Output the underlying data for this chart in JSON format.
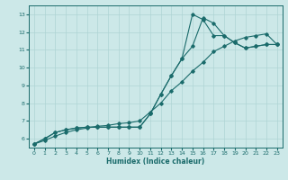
{
  "xlabel": "Humidex (Indice chaleur)",
  "bg_color": "#cce8e8",
  "line_color": "#1a6b6b",
  "grid_color": "#afd4d4",
  "xlim": [
    -0.5,
    23.5
  ],
  "ylim": [
    5.5,
    13.5
  ],
  "xticks": [
    0,
    1,
    2,
    3,
    4,
    5,
    6,
    7,
    8,
    9,
    10,
    11,
    12,
    13,
    14,
    15,
    16,
    17,
    18,
    19,
    20,
    21,
    22,
    23
  ],
  "yticks": [
    6,
    7,
    8,
    9,
    10,
    11,
    12,
    13
  ],
  "curve_spike1": {
    "x": [
      0,
      1,
      2,
      3,
      4,
      5,
      6,
      7,
      8,
      9,
      10,
      11,
      12,
      13,
      14,
      15,
      16,
      17,
      18,
      19,
      20,
      21,
      22,
      23
    ],
    "y": [
      5.7,
      6.0,
      6.35,
      6.5,
      6.6,
      6.65,
      6.65,
      6.65,
      6.65,
      6.65,
      6.65,
      7.4,
      8.5,
      9.55,
      10.5,
      13.0,
      12.7,
      11.8,
      11.8,
      11.4,
      11.1,
      11.2,
      11.3,
      11.3
    ]
  },
  "curve_spike2": {
    "x": [
      0,
      1,
      2,
      3,
      4,
      5,
      6,
      7,
      8,
      9,
      10,
      11,
      12,
      13,
      14,
      15,
      16,
      17,
      18,
      19,
      20,
      21,
      22,
      23
    ],
    "y": [
      5.7,
      6.0,
      6.35,
      6.5,
      6.6,
      6.65,
      6.65,
      6.65,
      6.65,
      6.65,
      6.65,
      7.4,
      8.5,
      9.55,
      10.5,
      11.2,
      12.8,
      12.5,
      11.8,
      11.4,
      11.1,
      11.2,
      11.3,
      11.3
    ]
  },
  "curve_linear": {
    "x": [
      0,
      1,
      2,
      3,
      4,
      5,
      6,
      7,
      8,
      9,
      10,
      11,
      12,
      13,
      14,
      15,
      16,
      17,
      18,
      19,
      20,
      21,
      22,
      23
    ],
    "y": [
      5.7,
      5.9,
      6.15,
      6.35,
      6.5,
      6.6,
      6.7,
      6.75,
      6.85,
      6.9,
      7.0,
      7.5,
      8.0,
      8.7,
      9.2,
      9.8,
      10.3,
      10.9,
      11.2,
      11.5,
      11.7,
      11.8,
      11.9,
      11.3
    ]
  }
}
